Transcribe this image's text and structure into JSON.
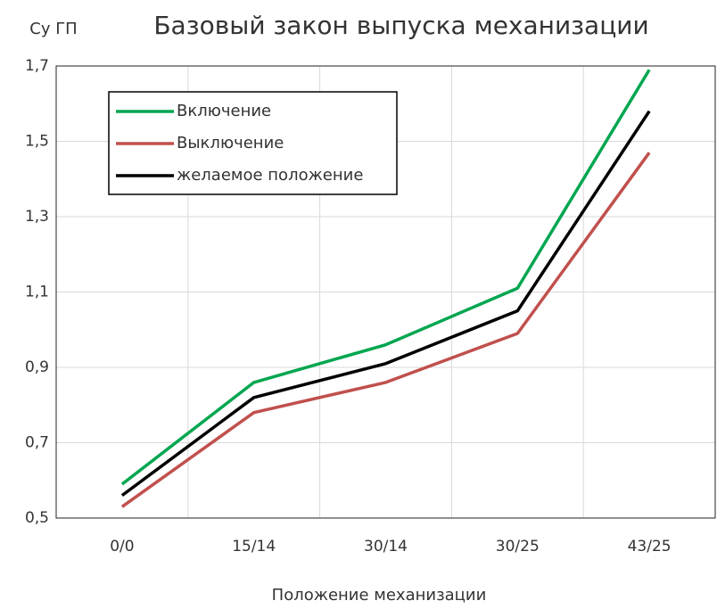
{
  "chart_data": {
    "type": "line",
    "title": "Базовый закон выпуска механизации",
    "y_label": "Cy ГП",
    "x_label": "Положение механизации",
    "categories": [
      "0/0",
      "15/14",
      "30/14",
      "30/25",
      "43/25"
    ],
    "series": [
      {
        "name": "Включение",
        "color": "#00a650",
        "values": [
          0.59,
          0.86,
          0.96,
          1.11,
          1.69
        ]
      },
      {
        "name": "Выключение",
        "color": "#c0504d",
        "values": [
          0.53,
          0.78,
          0.86,
          0.99,
          1.47
        ]
      },
      {
        "name": "желаемое положение",
        "color": "#000000",
        "values": [
          0.56,
          0.82,
          0.91,
          1.05,
          1.58
        ]
      }
    ],
    "ylim": [
      0.5,
      1.7
    ],
    "yticks": [
      {
        "value": 0.5,
        "label": "0,5"
      },
      {
        "value": 0.7,
        "label": "0,7"
      },
      {
        "value": 0.9,
        "label": "0,9"
      },
      {
        "value": 1.1,
        "label": "1,1"
      },
      {
        "value": 1.3,
        "label": "1,3"
      },
      {
        "value": 1.5,
        "label": "1,5"
      },
      {
        "value": 1.7,
        "label": "1,7"
      }
    ],
    "grid": true,
    "legend": "upper left"
  }
}
